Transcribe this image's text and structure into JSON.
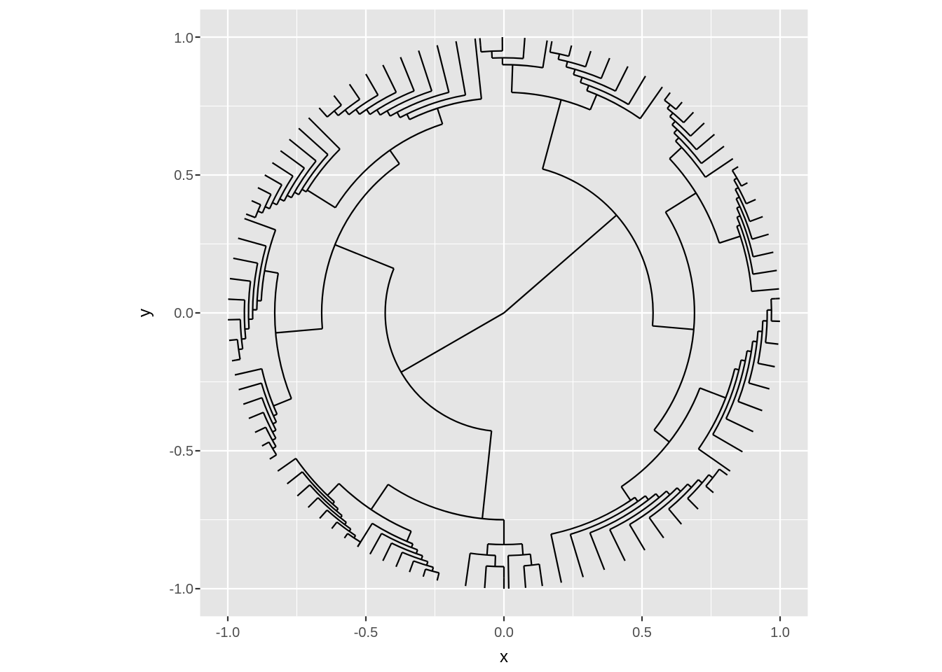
{
  "chart_data": {
    "type": "radial-dendrogram",
    "xlabel": "x",
    "ylabel": "y",
    "xlim": [
      -1.1,
      1.1
    ],
    "ylim": [
      -1.1,
      1.1
    ],
    "x_ticks": [
      -1.0,
      -0.5,
      0.0,
      0.5,
      1.0
    ],
    "y_ticks": [
      -1.0,
      -0.5,
      0.0,
      0.5,
      1.0
    ],
    "x_tick_labels": [
      "-1.0",
      "-0.5",
      "0.0",
      "0.5",
      "1.0"
    ],
    "y_tick_labels": [
      "-1.0",
      "-0.5",
      "0.0",
      "0.5",
      "1.0"
    ],
    "grid": true,
    "leaf_radius": 1.0,
    "tree": {
      "h": 0,
      "children": [
        {
          "h": 0.43,
          "a": 210,
          "children": [
            {
              "h": 0.66,
              "a": 158,
              "children": [
                {
                  "h": 0.83,
                  "a": 185,
                  "children": [
                    {
                      "h": 0.9,
                      "a": 202,
                      "children": [
                        {
                          "n": 7,
                          "s": 193,
                          "e": 212
                        }
                      ]
                    },
                    {
                      "h": 0.88,
                      "a": 170,
                      "children": [
                        {
                          "n": 8,
                          "s": 160,
                          "e": 190
                        }
                      ]
                    }
                  ]
                },
                {
                  "h": 0.72,
                  "a": 125,
                  "children": [
                    {
                      "h": 0.84,
                      "a": 148,
                      "children": [
                        {
                          "n": 9,
                          "s": 135,
                          "e": 159
                        }
                      ]
                    },
                    {
                      "h": 0.78,
                      "a": 108,
                      "children": [
                        {
                          "n": 10,
                          "s": 96,
                          "e": 132
                        }
                      ]
                    }
                  ]
                }
              ]
            },
            {
              "h": 0.75,
              "a": 264,
              "children": [
                {
                  "h": 0.86,
                  "a": 236,
                  "children": [
                    {
                      "h": 0.92,
                      "a": 226,
                      "children": [
                        {
                          "n": 8,
                          "s": 215,
                          "e": 238
                        }
                      ]
                    },
                    {
                      "h": 0.9,
                      "a": 247,
                      "children": [
                        {
                          "n": 7,
                          "s": 238,
                          "e": 256
                        }
                      ]
                    }
                  ]
                },
                {
                  "h": 0.84,
                  "a": 270,
                  "children": [
                    {
                      "n": 3,
                      "s": 262,
                      "e": 270
                    },
                    {
                      "n": 3,
                      "s": 271,
                      "e": 278
                    }
                  ]
                }
              ]
            }
          ]
        },
        {
          "h": 0.54,
          "a": 41,
          "children": [
            {
              "h": 0.8,
              "a": 75,
              "children": [
                {
                  "h": 0.9,
                  "a": 88,
                  "children": [
                    {
                      "n": 4,
                      "s": 81,
                      "e": 95
                    }
                  ]
                },
                {
                  "h": 0.86,
                  "a": 67,
                  "children": [
                    {
                      "n": 7,
                      "s": 55,
                      "e": 80
                    }
                  ]
                }
              ]
            },
            {
              "h": 0.69,
              "a": 355,
              "children": [
                {
                  "h": 0.82,
                  "a": 32,
                  "children": [
                    {
                      "h": 0.88,
                      "a": 43,
                      "children": [
                        {
                          "n": 7,
                          "s": 34,
                          "e": 53
                        }
                      ]
                    },
                    {
                      "h": 0.9,
                      "a": 18,
                      "children": [
                        {
                          "n": 8,
                          "s": 5,
                          "e": 32
                        }
                      ]
                    }
                  ]
                },
                {
                  "h": 0.76,
                  "a": 322,
                  "children": [
                    {
                      "h": 0.86,
                      "a": 339,
                      "children": [
                        {
                          "n": 9,
                          "s": 325,
                          "e": 3
                        }
                      ]
                    },
                    {
                      "h": 0.82,
                      "a": 304,
                      "children": [
                        {
                          "n": 10,
                          "s": 282,
                          "e": 324
                        }
                      ]
                    }
                  ]
                }
              ]
            }
          ]
        }
      ]
    }
  }
}
